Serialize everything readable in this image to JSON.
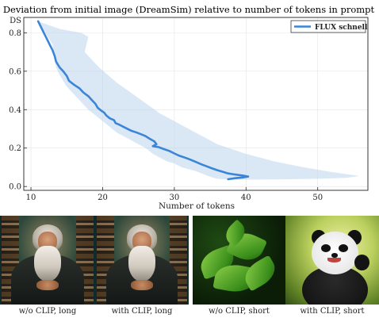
{
  "chart_data": {
    "type": "line",
    "title": "Deviation from initial image (DreamSim) relative to number of tokens in prompt",
    "xlabel": "Number of tokens",
    "ylabel": "DS",
    "xlim": [
      9,
      57
    ],
    "ylim": [
      -0.02,
      0.88
    ],
    "xticks": [
      10,
      20,
      30,
      40,
      50
    ],
    "yticks": [
      0.0,
      0.2,
      0.4,
      0.6,
      0.8
    ],
    "ytick_labels": [
      "0.0",
      "0.2",
      "0.4",
      "0.6",
      "0.8"
    ],
    "grid": true,
    "legend_position": "top-right",
    "series": [
      {
        "name": "FLUX schnell",
        "color": "#3a85d9",
        "x": [
          11.0,
          11.4,
          11.8,
          12.2,
          12.6,
          13.0,
          13.3,
          13.5,
          14.0,
          14.5,
          15.0,
          15.3,
          16.0,
          16.8,
          17.3,
          18.0,
          18.5,
          19.0,
          19.3,
          19.8,
          20.2,
          20.5,
          21.0,
          21.6,
          21.8,
          22.4,
          23.2,
          24.0,
          24.8,
          25.5,
          26.0,
          26.5,
          27.2,
          27.5,
          27.0,
          27.8,
          28.5,
          29.3,
          30.0,
          30.7,
          31.5,
          32.2,
          33.0,
          33.8,
          34.5,
          35.2,
          36.0,
          36.8,
          37.5,
          38.5,
          39.5,
          40.3,
          39.5,
          38.5,
          37.5
        ],
        "y": [
          0.86,
          0.83,
          0.8,
          0.77,
          0.74,
          0.71,
          0.68,
          0.65,
          0.62,
          0.6,
          0.575,
          0.55,
          0.53,
          0.51,
          0.49,
          0.47,
          0.45,
          0.43,
          0.41,
          0.395,
          0.385,
          0.37,
          0.355,
          0.345,
          0.33,
          0.32,
          0.305,
          0.29,
          0.28,
          0.27,
          0.262,
          0.25,
          0.235,
          0.22,
          0.21,
          0.205,
          0.195,
          0.185,
          0.172,
          0.16,
          0.15,
          0.14,
          0.128,
          0.115,
          0.105,
          0.095,
          0.085,
          0.076,
          0.068,
          0.062,
          0.057,
          0.052,
          0.047,
          0.043,
          0.038
        ]
      }
    ],
    "band": {
      "color": "#bcd6ef",
      "lower_x": [
        11.0,
        12.0,
        13.0,
        13.5,
        14.0,
        15.0,
        16.0,
        17.0,
        18.0,
        19.0,
        20.0,
        21.0,
        22.0,
        23.0,
        24.0,
        25.0,
        26.0,
        27.0,
        28.0,
        29.0,
        30.0,
        31.0,
        32.0,
        33.0,
        34.0,
        35.0,
        36.0
      ],
      "lower_y": [
        0.86,
        0.8,
        0.74,
        0.62,
        0.58,
        0.52,
        0.48,
        0.44,
        0.4,
        0.37,
        0.34,
        0.31,
        0.28,
        0.26,
        0.24,
        0.22,
        0.2,
        0.17,
        0.15,
        0.13,
        0.12,
        0.1,
        0.09,
        0.08,
        0.065,
        0.05,
        0.04
      ],
      "upper_x": [
        11.0,
        12.5,
        14.0,
        15.5,
        17.0,
        18.0,
        17.5,
        19.5,
        22.0,
        25.0,
        28.0,
        31.0,
        34.0,
        36.0,
        40.0,
        44.0,
        48.0,
        52.0,
        55.8,
        54.0,
        50.0,
        46.0,
        42.0,
        38.0
      ],
      "upper_y": [
        0.86,
        0.84,
        0.82,
        0.81,
        0.8,
        0.78,
        0.7,
        0.62,
        0.54,
        0.46,
        0.38,
        0.32,
        0.26,
        0.22,
        0.17,
        0.13,
        0.1,
        0.075,
        0.055,
        0.045,
        0.04,
        0.038,
        0.036,
        0.035
      ]
    }
  },
  "captions": {
    "c1": "w/o CLIP, long",
    "c2": "with CLIP, long",
    "c3": "w/o CLIP, short",
    "c4": "with CLIP, short"
  }
}
